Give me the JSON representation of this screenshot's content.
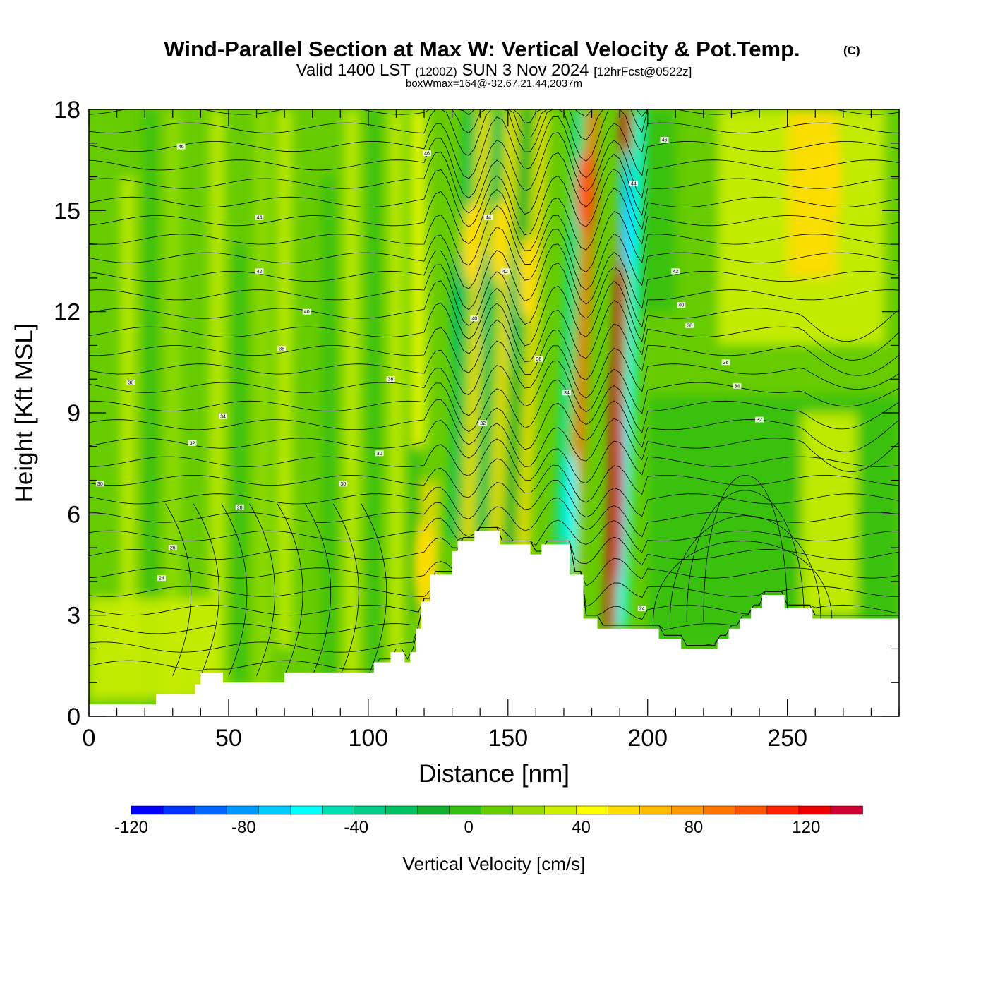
{
  "chart_data": {
    "type": "heatmap",
    "title": {
      "main": "Wind-Parallel Section at Max W: Vertical Velocity & Pot.Temp.",
      "copyright": "(C)",
      "valid_prefix": "Valid 1400 LST",
      "valid_utc": "(1200Z)",
      "valid_date": "SUN 3 Nov 2024",
      "forecast": "[12hrFcst@0522z]",
      "boxwmax": "boxWmax=164@-32.67,21.44,2037m"
    },
    "xlabel": "Distance [nm]",
    "ylabel": "Height [Kft MSL]",
    "xlim": [
      0,
      290
    ],
    "ylim": [
      0,
      18
    ],
    "x_ticks": [
      0,
      50,
      100,
      150,
      200,
      250
    ],
    "y_ticks": [
      0,
      3,
      6,
      9,
      12,
      15,
      18
    ],
    "colorbar": {
      "title": "Vertical Velocity [cm/s]",
      "min": -120,
      "max": 140,
      "step": 10,
      "tick_values": [
        -120,
        -80,
        -40,
        0,
        40,
        80,
        120
      ],
      "tick_labels": [
        "-120",
        "-80",
        "-40",
        "0",
        "40",
        "80",
        "120"
      ],
      "colors": [
        "#0000ff",
        "#0033ff",
        "#0066ff",
        "#0099ff",
        "#00ccff",
        "#00ffff",
        "#00e0b0",
        "#00cc88",
        "#00c060",
        "#11b030",
        "#33c010",
        "#66cc00",
        "#99dd00",
        "#ccee00",
        "#ffff00",
        "#ffdd00",
        "#ffbb00",
        "#ff9900",
        "#ff7700",
        "#ff5500",
        "#ff2200",
        "#ee0000",
        "#cc0033"
      ]
    },
    "terrain": [
      [
        0,
        0.35
      ],
      [
        24,
        0.35
      ],
      [
        24,
        0.65
      ],
      [
        38,
        0.65
      ],
      [
        38,
        0.95
      ],
      [
        40,
        0.95
      ],
      [
        40,
        1.3
      ],
      [
        48,
        1.3
      ],
      [
        48,
        1.0
      ],
      [
        70,
        1.0
      ],
      [
        70,
        1.3
      ],
      [
        102,
        1.3
      ],
      [
        102,
        1.6
      ],
      [
        108,
        1.6
      ],
      [
        108,
        1.9
      ],
      [
        113,
        1.9
      ],
      [
        113,
        1.6
      ],
      [
        115,
        1.6
      ],
      [
        115,
        1.9
      ],
      [
        117,
        1.9
      ],
      [
        117,
        2.6
      ],
      [
        119,
        2.6
      ],
      [
        119,
        3.4
      ],
      [
        122,
        3.4
      ],
      [
        122,
        4.2
      ],
      [
        130,
        4.2
      ],
      [
        130,
        4.9
      ],
      [
        132,
        4.9
      ],
      [
        132,
        5.2
      ],
      [
        138,
        5.2
      ],
      [
        138,
        5.5
      ],
      [
        147,
        5.5
      ],
      [
        147,
        5.1
      ],
      [
        158,
        5.1
      ],
      [
        158,
        4.8
      ],
      [
        162,
        4.8
      ],
      [
        162,
        5.1
      ],
      [
        172,
        5.1
      ],
      [
        172,
        4.2
      ],
      [
        177,
        4.2
      ],
      [
        177,
        2.9
      ],
      [
        182,
        2.9
      ],
      [
        182,
        2.6
      ],
      [
        204,
        2.6
      ],
      [
        204,
        2.3
      ],
      [
        212,
        2.3
      ],
      [
        212,
        2.0
      ],
      [
        225,
        2.0
      ],
      [
        225,
        2.3
      ],
      [
        229,
        2.3
      ],
      [
        229,
        2.6
      ],
      [
        233,
        2.6
      ],
      [
        233,
        2.9
      ],
      [
        237,
        2.9
      ],
      [
        237,
        3.2
      ],
      [
        241,
        3.2
      ],
      [
        241,
        3.6
      ],
      [
        249,
        3.6
      ],
      [
        249,
        3.2
      ],
      [
        259,
        3.2
      ],
      [
        259,
        2.9
      ],
      [
        290,
        2.9
      ]
    ],
    "updraft_cores": [
      {
        "x": 189,
        "y": 7.5,
        "w_cm_s": 140
      },
      {
        "x": 178,
        "y": 15.5,
        "w_cm_s": 70
      },
      {
        "x": 157,
        "y": 13,
        "w_cm_s": 35
      },
      {
        "x": 147,
        "y": 14,
        "w_cm_s": 30
      },
      {
        "x": 137,
        "y": 14,
        "w_cm_s": 30
      },
      {
        "x": 120,
        "y": 4.5,
        "w_cm_s": 35
      },
      {
        "x": 265,
        "y": 16,
        "w_cm_s": 30
      }
    ],
    "downdraft_cores": [
      {
        "x": 192,
        "y": 15,
        "w_cm_s": -80
      },
      {
        "x": 173,
        "y": 6,
        "w_cm_s": -70
      },
      {
        "x": 152,
        "y": 12,
        "w_cm_s": -35
      },
      {
        "x": 142,
        "y": 12,
        "w_cm_s": -35
      },
      {
        "x": 132,
        "y": 12,
        "w_cm_s": -35
      }
    ],
    "theta_contour_labels": [
      {
        "x": 33,
        "y": 16.9,
        "text": "46"
      },
      {
        "x": 121,
        "y": 16.7,
        "text": "46"
      },
      {
        "x": 206,
        "y": 17.1,
        "text": "46"
      },
      {
        "x": 61,
        "y": 14.8,
        "text": "44"
      },
      {
        "x": 143,
        "y": 14.8,
        "text": "44"
      },
      {
        "x": 195,
        "y": 15.8,
        "text": "44"
      },
      {
        "x": 61,
        "y": 13.2,
        "text": "42"
      },
      {
        "x": 149,
        "y": 13.2,
        "text": "42"
      },
      {
        "x": 210,
        "y": 13.2,
        "text": "42"
      },
      {
        "x": 78,
        "y": 12.0,
        "text": "40"
      },
      {
        "x": 138,
        "y": 11.8,
        "text": "40"
      },
      {
        "x": 212,
        "y": 12.2,
        "text": "40"
      },
      {
        "x": 69,
        "y": 10.9,
        "text": "38"
      },
      {
        "x": 215,
        "y": 11.6,
        "text": "38"
      },
      {
        "x": 15,
        "y": 9.9,
        "text": "36"
      },
      {
        "x": 108,
        "y": 10.0,
        "text": "36"
      },
      {
        "x": 161,
        "y": 10.6,
        "text": "36"
      },
      {
        "x": 228,
        "y": 10.5,
        "text": "36"
      },
      {
        "x": 48,
        "y": 8.9,
        "text": "34"
      },
      {
        "x": 171,
        "y": 9.6,
        "text": "34"
      },
      {
        "x": 232,
        "y": 9.8,
        "text": "34"
      },
      {
        "x": 37,
        "y": 8.1,
        "text": "32"
      },
      {
        "x": 141,
        "y": 8.7,
        "text": "32"
      },
      {
        "x": 240,
        "y": 8.8,
        "text": "32"
      },
      {
        "x": 104,
        "y": 7.8,
        "text": "30"
      },
      {
        "x": 4,
        "y": 6.9,
        "text": "30"
      },
      {
        "x": 91,
        "y": 6.9,
        "text": "30"
      },
      {
        "x": 54,
        "y": 6.2,
        "text": "28"
      },
      {
        "x": 30,
        "y": 5.0,
        "text": "26"
      },
      {
        "x": 26,
        "y": 4.1,
        "text": "24"
      },
      {
        "x": 198,
        "y": 3.2,
        "text": "24"
      }
    ]
  }
}
